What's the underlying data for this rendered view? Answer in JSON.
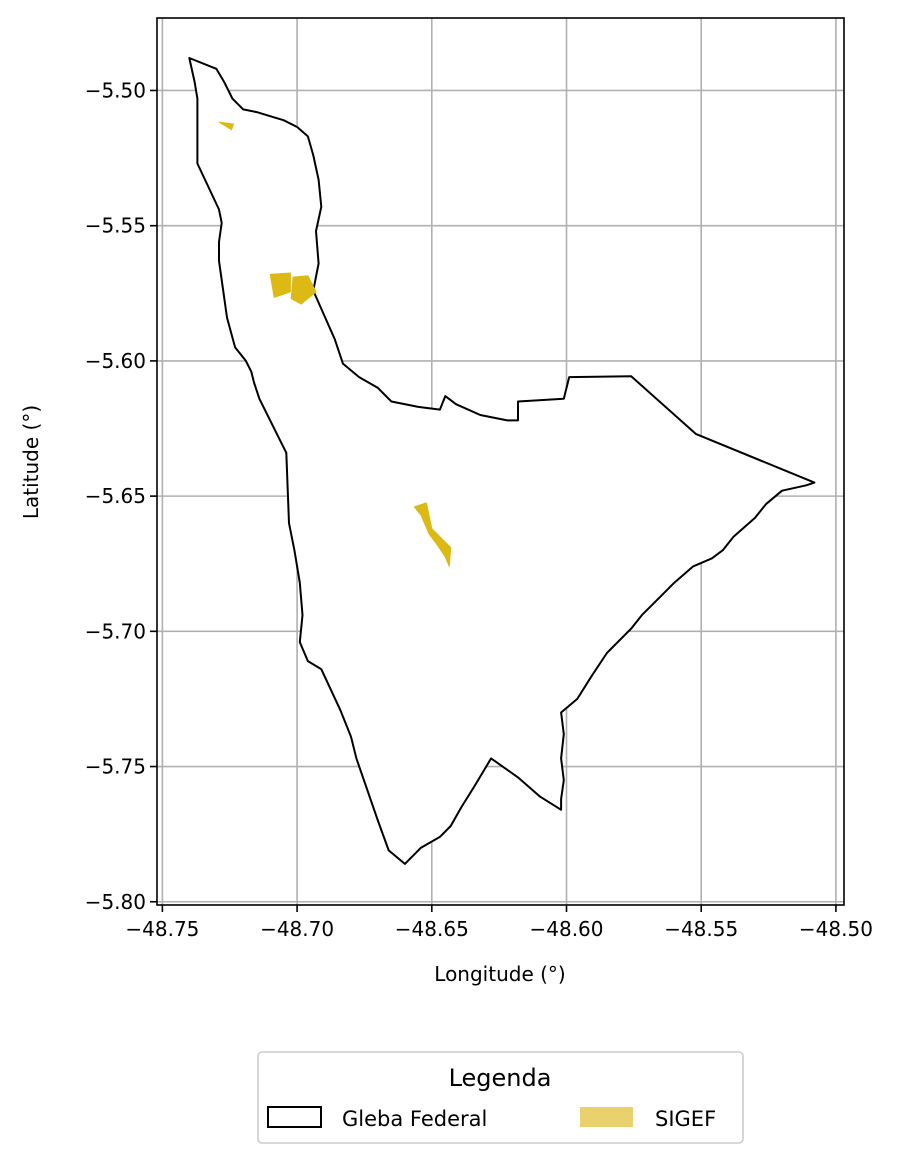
{
  "chart_data": {
    "type": "map",
    "xlabel": "Longitude (°)",
    "ylabel": "Latitude (°)",
    "xlim": [
      -48.752,
      -48.497
    ],
    "ylim": [
      -5.8012,
      -5.4732
    ],
    "grid": true,
    "xticks": [
      {
        "value": -48.75,
        "label": "−48.75"
      },
      {
        "value": -48.7,
        "label": "−48.70"
      },
      {
        "value": -48.65,
        "label": "−48.65"
      },
      {
        "value": -48.6,
        "label": "−48.60"
      },
      {
        "value": -48.55,
        "label": "−48.55"
      },
      {
        "value": -48.5,
        "label": "−48.50"
      }
    ],
    "yticks": [
      {
        "value": -5.5,
        "label": "−5.50"
      },
      {
        "value": -5.55,
        "label": "−5.55"
      },
      {
        "value": -5.6,
        "label": "−5.60"
      },
      {
        "value": -5.65,
        "label": "−5.65"
      },
      {
        "value": -5.7,
        "label": "−5.70"
      },
      {
        "value": -5.75,
        "label": "−5.75"
      },
      {
        "value": -5.8,
        "label": "−5.80"
      }
    ],
    "legend": {
      "title": "Legenda",
      "position": "bottom-center",
      "entries": [
        {
          "label": "Gleba Federal",
          "layer": "gleba_federal"
        },
        {
          "label": "SIGEF",
          "layer": "sigef"
        }
      ]
    },
    "layers": {
      "gleba_federal": {
        "name": "Gleba Federal",
        "fill": "#ffffff",
        "edge_color": "#000000",
        "polygons": [
          [
            [
              -48.74,
              -5.488
            ],
            [
              -48.73,
              -5.492
            ],
            [
              -48.727,
              -5.497
            ],
            [
              -48.724,
              -5.503
            ],
            [
              -48.72,
              -5.507
            ],
            [
              -48.715,
              -5.508
            ],
            [
              -48.71,
              -5.5095
            ],
            [
              -48.705,
              -5.511
            ],
            [
              -48.7,
              -5.5135
            ],
            [
              -48.696,
              -5.517
            ],
            [
              -48.694,
              -5.524
            ],
            [
              -48.692,
              -5.533
            ],
            [
              -48.691,
              -5.543
            ],
            [
              -48.693,
              -5.552
            ],
            [
              -48.692,
              -5.564
            ],
            [
              -48.694,
              -5.574
            ],
            [
              -48.69,
              -5.583
            ],
            [
              -48.686,
              -5.592
            ],
            [
              -48.683,
              -5.601
            ],
            [
              -48.677,
              -5.606
            ],
            [
              -48.67,
              -5.61
            ],
            [
              -48.665,
              -5.615
            ],
            [
              -48.655,
              -5.617
            ],
            [
              -48.647,
              -5.618
            ],
            [
              -48.645,
              -5.613
            ],
            [
              -48.641,
              -5.616
            ],
            [
              -48.632,
              -5.62
            ],
            [
              -48.622,
              -5.622
            ],
            [
              -48.618,
              -5.622
            ],
            [
              -48.618,
              -5.615
            ],
            [
              -48.601,
              -5.614
            ],
            [
              -48.599,
              -5.606
            ],
            [
              -48.576,
              -5.6057
            ],
            [
              -48.552,
              -5.627
            ],
            [
              -48.508,
              -5.645
            ],
            [
              -48.511,
              -5.646
            ],
            [
              -48.52,
              -5.648
            ],
            [
              -48.526,
              -5.653
            ],
            [
              -48.53,
              -5.658
            ],
            [
              -48.538,
              -5.665
            ],
            [
              -48.542,
              -5.67
            ],
            [
              -48.546,
              -5.673
            ],
            [
              -48.553,
              -5.676
            ],
            [
              -48.56,
              -5.682
            ],
            [
              -48.566,
              -5.688
            ],
            [
              -48.572,
              -5.694
            ],
            [
              -48.576,
              -5.699
            ],
            [
              -48.585,
              -5.708
            ],
            [
              -48.591,
              -5.717
            ],
            [
              -48.596,
              -5.725
            ],
            [
              -48.602,
              -5.73
            ],
            [
              -48.601,
              -5.738
            ],
            [
              -48.602,
              -5.747
            ],
            [
              -48.601,
              -5.755
            ],
            [
              -48.602,
              -5.762
            ],
            [
              -48.602,
              -5.766
            ],
            [
              -48.61,
              -5.761
            ],
            [
              -48.618,
              -5.754
            ],
            [
              -48.628,
              -5.747
            ],
            [
              -48.634,
              -5.757
            ],
            [
              -48.639,
              -5.765
            ],
            [
              -48.643,
              -5.772
            ],
            [
              -48.647,
              -5.776
            ],
            [
              -48.654,
              -5.78
            ],
            [
              -48.66,
              -5.786
            ],
            [
              -48.666,
              -5.781
            ],
            [
              -48.67,
              -5.77
            ],
            [
              -48.678,
              -5.747
            ],
            [
              -48.68,
              -5.739
            ],
            [
              -48.684,
              -5.729
            ],
            [
              -48.691,
              -5.714
            ],
            [
              -48.696,
              -5.711
            ],
            [
              -48.699,
              -5.704
            ],
            [
              -48.698,
              -5.694
            ],
            [
              -48.699,
              -5.682
            ],
            [
              -48.701,
              -5.67
            ],
            [
              -48.703,
              -5.66
            ],
            [
              -48.704,
              -5.634
            ],
            [
              -48.708,
              -5.626
            ],
            [
              -48.714,
              -5.614
            ],
            [
              -48.716,
              -5.608
            ],
            [
              -48.717,
              -5.604
            ],
            [
              -48.719,
              -5.6
            ],
            [
              -48.723,
              -5.595
            ],
            [
              -48.726,
              -5.584
            ],
            [
              -48.729,
              -5.563
            ],
            [
              -48.729,
              -5.556
            ],
            [
              -48.728,
              -5.549
            ],
            [
              -48.729,
              -5.544
            ],
            [
              -48.737,
              -5.527
            ],
            [
              -48.737,
              -5.503
            ],
            [
              -48.738,
              -5.497
            ],
            [
              -48.74,
              -5.488
            ]
          ]
        ]
      },
      "sigef": {
        "name": "SIGEF",
        "fill": "#dcb914",
        "legend_color": "#e9d26e",
        "edge_color": "#dcb914",
        "polygons": [
          [
            [
              -48.729,
              -5.5117
            ],
            [
              -48.7236,
              -5.5124
            ],
            [
              -48.7243,
              -5.5145
            ]
          ],
          [
            [
              -48.71,
              -5.568
            ],
            [
              -48.7025,
              -5.5675
            ],
            [
              -48.7025,
              -5.5745
            ],
            [
              -48.7085,
              -5.5765
            ]
          ],
          [
            [
              -48.7015,
              -5.569
            ],
            [
              -48.696,
              -5.5685
            ],
            [
              -48.693,
              -5.5745
            ],
            [
              -48.6985,
              -5.579
            ],
            [
              -48.7022,
              -5.577
            ]
          ],
          [
            [
              -48.6565,
              -5.654
            ],
            [
              -48.652,
              -5.6525
            ],
            [
              -48.65,
              -5.662
            ],
            [
              -48.643,
              -5.669
            ],
            [
              -48.6435,
              -5.676
            ],
            [
              -48.645,
              -5.6725
            ],
            [
              -48.648,
              -5.668
            ],
            [
              -48.651,
              -5.664
            ],
            [
              -48.654,
              -5.657
            ]
          ]
        ]
      }
    }
  }
}
